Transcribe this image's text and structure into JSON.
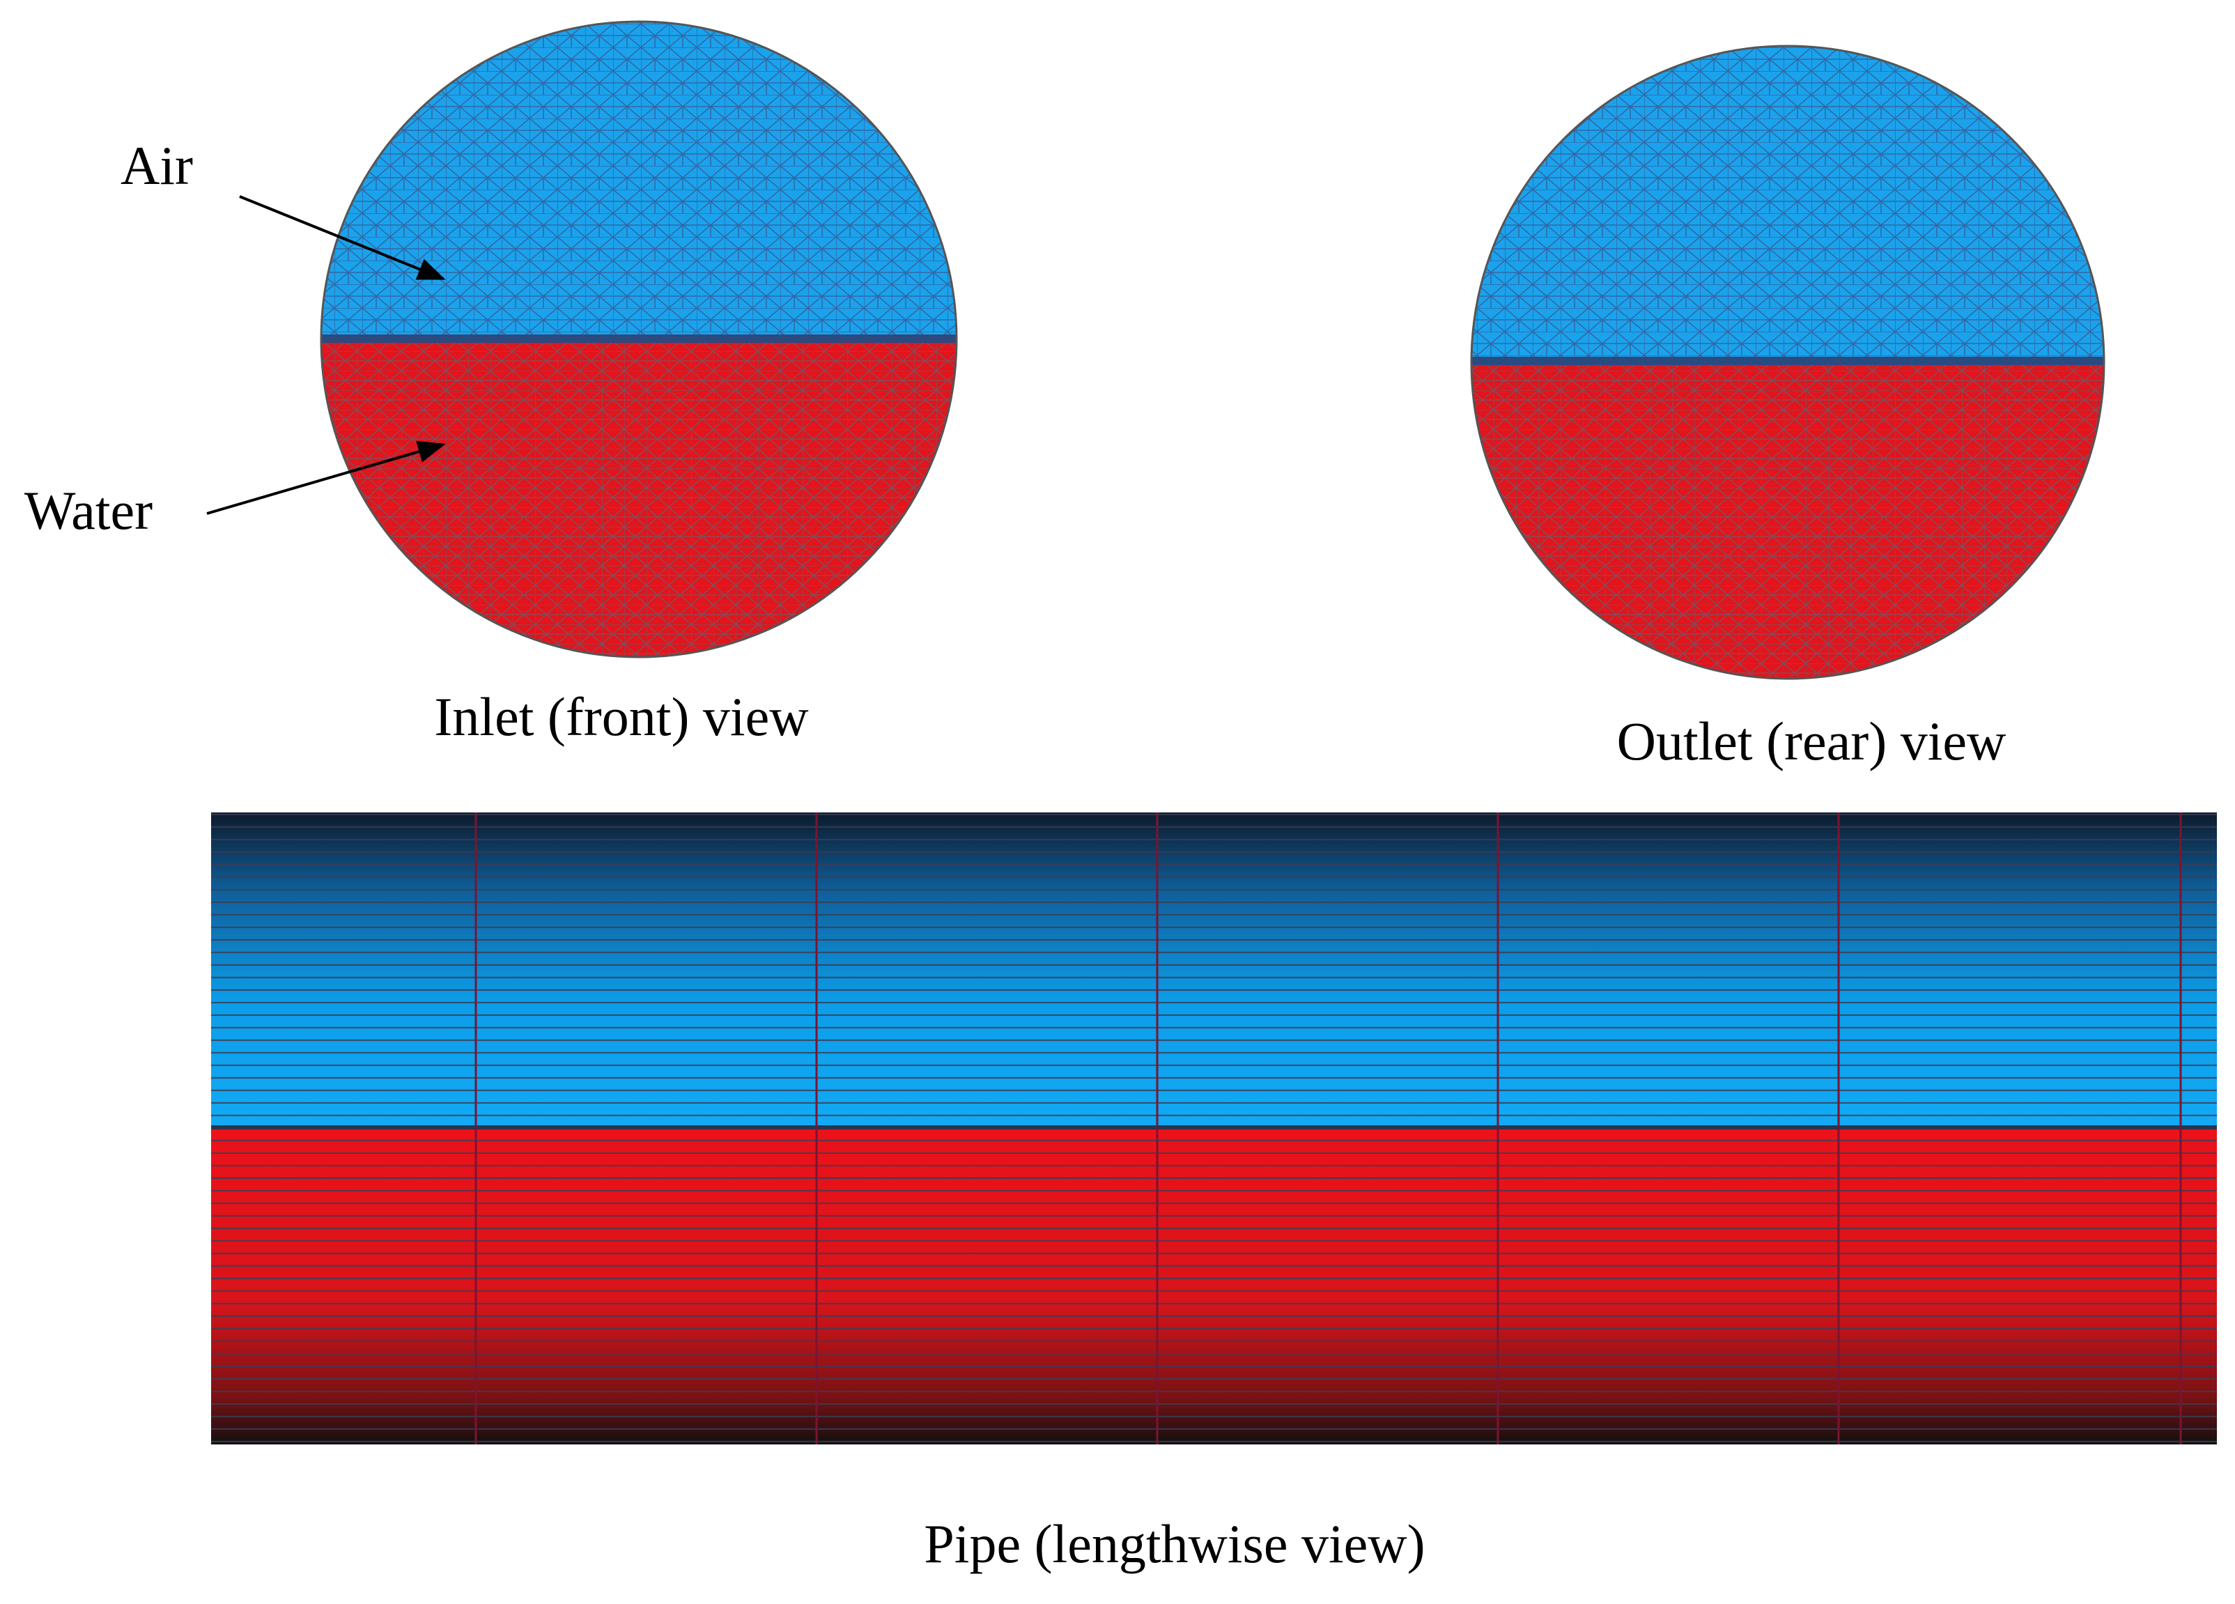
{
  "labels": {
    "air": "Air",
    "water": "Water"
  },
  "views": {
    "inlet": "Inlet (front) view",
    "outlet": "Outlet (rear) view",
    "pipe": "Pipe (lengthwise view)"
  }
}
